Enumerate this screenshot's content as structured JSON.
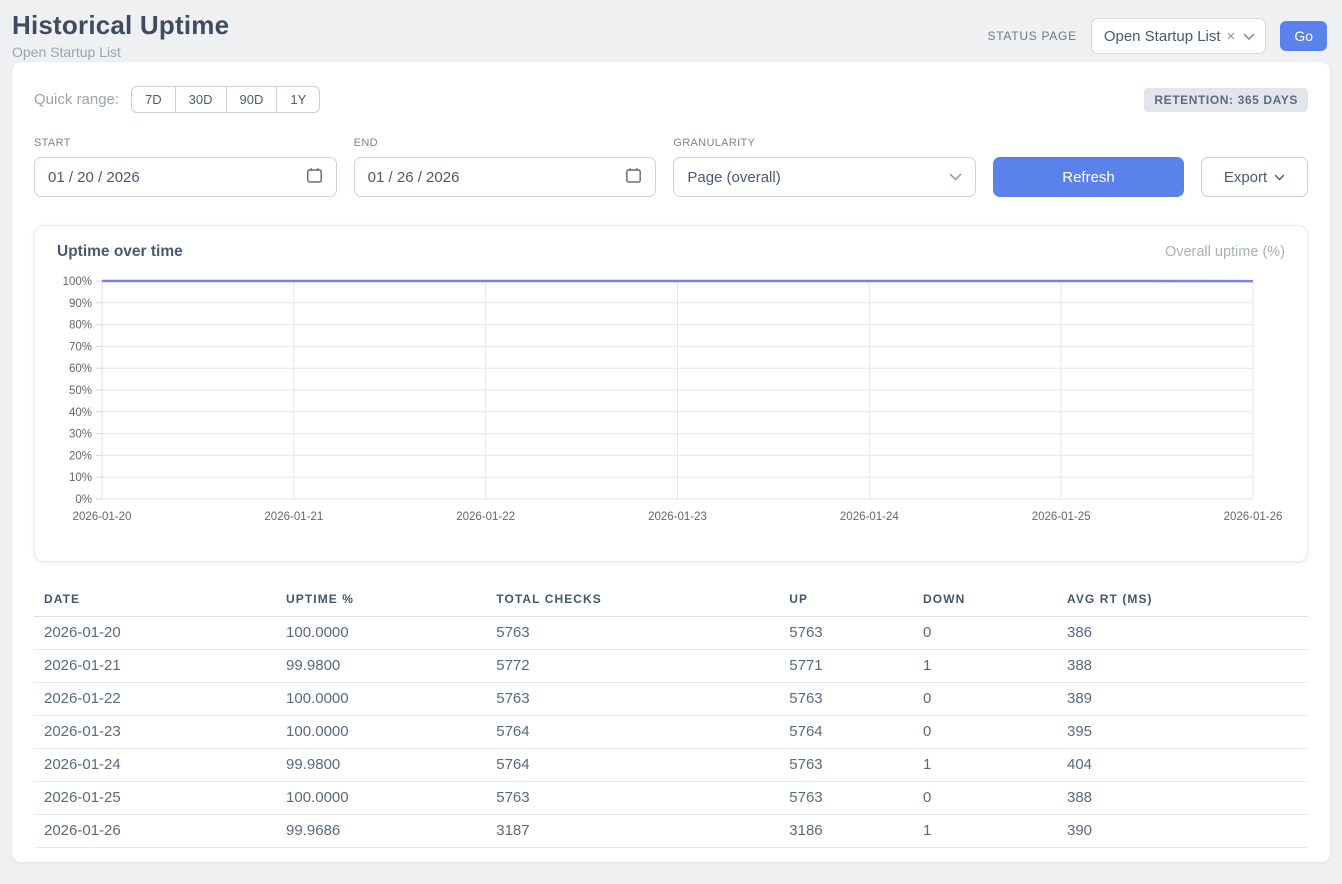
{
  "page": {
    "title": "Historical Uptime",
    "subtitle": "Open Startup List"
  },
  "header": {
    "status_page_label": "STATUS PAGE",
    "status_page_value": "Open Startup List",
    "clear_icon": "×",
    "go_label": "Go"
  },
  "filters": {
    "quick_range_label": "Quick range:",
    "quick_ranges": [
      "7D",
      "30D",
      "90D",
      "1Y"
    ],
    "retention_badge": "RETENTION: 365 DAYS",
    "start_label": "START",
    "start_value": "01 / 20 / 2026",
    "end_label": "END",
    "end_value": "01 / 26 / 2026",
    "granularity_label": "GRANULARITY",
    "granularity_value": "Page (overall)",
    "refresh_label": "Refresh",
    "export_label": "Export"
  },
  "chart": {
    "title": "Uptime over time",
    "legend": "Overall uptime (%)"
  },
  "chart_data": {
    "type": "line",
    "title": "Uptime over time",
    "x": [
      "2026-01-20",
      "2026-01-21",
      "2026-01-22",
      "2026-01-23",
      "2026-01-24",
      "2026-01-25",
      "2026-01-26"
    ],
    "series": [
      {
        "name": "Overall uptime (%)",
        "values": [
          100.0,
          99.98,
          100.0,
          100.0,
          99.98,
          100.0,
          99.9686
        ]
      }
    ],
    "ylim": [
      0,
      100
    ],
    "ytick_step": 10,
    "ytick_suffix": "%",
    "grid": true,
    "legend_position": "top-right",
    "line_color": "#7b80f0",
    "grid_color": "#e6e6e6",
    "tick_label_color": "#666666"
  },
  "table": {
    "columns": [
      "DATE",
      "UPTIME %",
      "TOTAL CHECKS",
      "UP",
      "DOWN",
      "AVG RT (MS)"
    ],
    "rows": [
      [
        "2026-01-20",
        "100.0000",
        "5763",
        "5763",
        "0",
        "386"
      ],
      [
        "2026-01-21",
        "99.9800",
        "5772",
        "5771",
        "1",
        "388"
      ],
      [
        "2026-01-22",
        "100.0000",
        "5763",
        "5763",
        "0",
        "389"
      ],
      [
        "2026-01-23",
        "100.0000",
        "5764",
        "5764",
        "0",
        "395"
      ],
      [
        "2026-01-24",
        "99.9800",
        "5764",
        "5763",
        "1",
        "404"
      ],
      [
        "2026-01-25",
        "100.0000",
        "5763",
        "5763",
        "0",
        "388"
      ],
      [
        "2026-01-26",
        "99.9686",
        "3187",
        "3186",
        "1",
        "390"
      ]
    ]
  }
}
